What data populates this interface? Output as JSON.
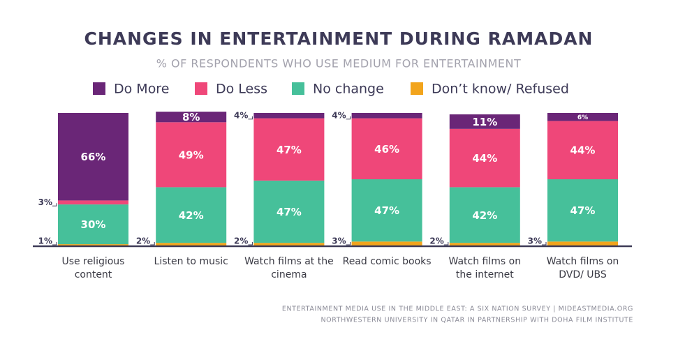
{
  "chart_data": {
    "type": "stacked-bar",
    "title": "CHANGES IN ENTERTAINMENT DURING RAMADAN",
    "subtitle": "% OF RESPONDENTS WHO USE MEDIUM FOR ENTERTAINMENT",
    "categories": [
      "Use religious content",
      "Listen to music",
      "Watch films at the cinema",
      "Read comic books",
      "Watch films on the internet",
      "Watch films on DVD/ UBS"
    ],
    "series": [
      {
        "name": "Don’t know/ Refused",
        "color": "#f2a41c",
        "values": [
          1,
          2,
          2,
          3,
          2,
          3
        ],
        "value_labels": [
          "1%",
          "2%",
          "2%",
          "3%",
          "2%",
          "3%"
        ]
      },
      {
        "name": "No change",
        "color": "#46c09a",
        "values": [
          30,
          42,
          47,
          47,
          42,
          47
        ],
        "value_labels": [
          "30%",
          "42%",
          "47%",
          "47%",
          "42%",
          "47%"
        ]
      },
      {
        "name": "Do Less",
        "color": "#ef4779",
        "values": [
          3,
          49,
          47,
          46,
          44,
          44
        ],
        "value_labels": [
          "3%",
          "49%",
          "47%",
          "46%",
          "44%",
          "44%"
        ]
      },
      {
        "name": "Do More",
        "color": "#6a2677",
        "values": [
          66,
          8,
          4,
          4,
          11,
          6
        ],
        "value_labels": [
          "66%",
          "8%",
          "4%",
          "4%",
          "11%",
          "6%"
        ]
      }
    ],
    "legend_order": [
      3,
      2,
      1,
      0
    ],
    "ylim": [
      0,
      100
    ],
    "source": [
      "ENTERTAINMENT MEDIA USE IN THE MIDDLE EAST: A SIX NATION SURVEY | MIDEASTMEDIA.ORG",
      "NORTHWESTERN UNIVERSITY IN QATAR IN PARTNERSHIP WITH DOHA FILM INSTITUTE"
    ]
  }
}
